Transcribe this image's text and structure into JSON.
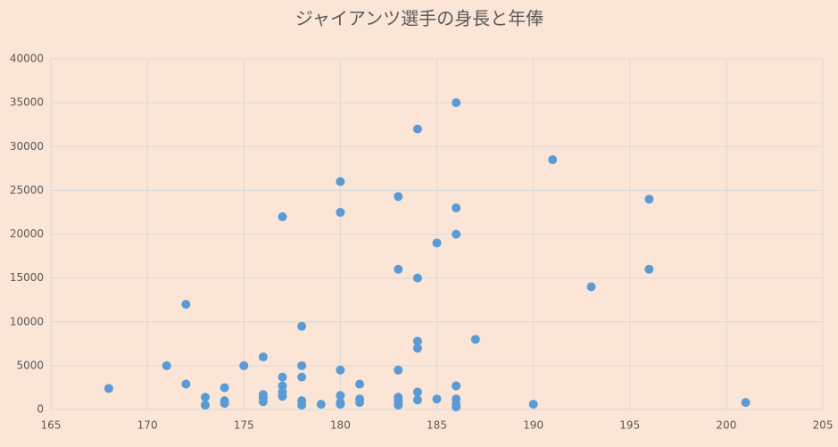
{
  "chart_data": {
    "type": "scatter",
    "title": "ジャイアンツ選手の身長と年俸",
    "color": "#5b9bd5",
    "grid": true,
    "xlim": [
      165,
      205
    ],
    "xticks": [
      165,
      170,
      175,
      180,
      185,
      190,
      195,
      200,
      205
    ],
    "ylim": [
      0,
      40000
    ],
    "yticks": [
      0,
      5000,
      10000,
      15000,
      20000,
      25000,
      30000,
      35000,
      40000
    ],
    "x": [
      168,
      171,
      172,
      172,
      173,
      173,
      174,
      174,
      174,
      175,
      176,
      176,
      176,
      176,
      177,
      177,
      177,
      177,
      177,
      178,
      178,
      178,
      178,
      178,
      179,
      180,
      180,
      180,
      180,
      180,
      180,
      181,
      181,
      181,
      183,
      183,
      183,
      183,
      183,
      183,
      183,
      184,
      184,
      184,
      184,
      184,
      184,
      185,
      185,
      186,
      186,
      186,
      186,
      186,
      186,
      186,
      187,
      190,
      191,
      193,
      196,
      196,
      201
    ],
    "y": [
      2400,
      5000,
      12000,
      2900,
      1400,
      500,
      2500,
      1000,
      700,
      5000,
      6000,
      1700,
      1300,
      900,
      22000,
      3700,
      2700,
      2000,
      1500,
      9500,
      5000,
      3700,
      1000,
      500,
      600,
      26000,
      22500,
      4500,
      1600,
      800,
      600,
      2900,
      1200,
      800,
      24300,
      16000,
      4500,
      1400,
      1000,
      700,
      500,
      32000,
      15000,
      7800,
      7000,
      2000,
      1100,
      19000,
      1200,
      35000,
      23000,
      20000,
      2700,
      1200,
      600,
      300,
      8000,
      600,
      28500,
      14000,
      24000,
      16000,
      800
    ]
  }
}
